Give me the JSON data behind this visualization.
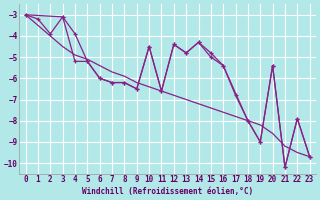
{
  "title": "",
  "xlabel": "Windchill (Refroidissement éolien,°C)",
  "ylabel": "",
  "background_color": "#b2e8e8",
  "grid_color": "#c0d8d8",
  "line_color": "#882288",
  "xlim": [
    -0.5,
    23.5
  ],
  "ylim": [
    -10.5,
    -2.5
  ],
  "yticks": [
    -10,
    -9,
    -8,
    -7,
    -6,
    -5,
    -4,
    -3
  ],
  "xticks": [
    0,
    1,
    2,
    3,
    4,
    5,
    6,
    7,
    8,
    9,
    10,
    11,
    12,
    13,
    14,
    15,
    16,
    17,
    18,
    19,
    20,
    21,
    22,
    23
  ],
  "series1": [
    [
      0,
      -3.0
    ],
    [
      1,
      -3.2
    ],
    [
      2,
      -3.9
    ],
    [
      3,
      -3.1
    ],
    [
      4,
      -3.9
    ],
    [
      5,
      -5.2
    ],
    [
      6,
      -6.0
    ],
    [
      7,
      -6.2
    ],
    [
      8,
      -6.2
    ],
    [
      9,
      -6.5
    ],
    [
      10,
      -4.5
    ],
    [
      11,
      -6.6
    ],
    [
      12,
      -4.4
    ],
    [
      13,
      -4.8
    ],
    [
      14,
      -4.3
    ],
    [
      15,
      -4.8
    ],
    [
      16,
      -5.4
    ],
    [
      17,
      -6.8
    ],
    [
      18,
      -8.0
    ],
    [
      19,
      -9.0
    ],
    [
      20,
      -5.4
    ],
    [
      21,
      -10.2
    ],
    [
      22,
      -7.9
    ],
    [
      23,
      -9.7
    ]
  ],
  "series2": [
    [
      0,
      -3.0
    ],
    [
      1,
      -3.5
    ],
    [
      2,
      -4.0
    ],
    [
      3,
      -4.5
    ],
    [
      4,
      -4.9
    ],
    [
      5,
      -5.1
    ],
    [
      6,
      -5.4
    ],
    [
      7,
      -5.7
    ],
    [
      8,
      -5.9
    ],
    [
      9,
      -6.2
    ],
    [
      10,
      -6.4
    ],
    [
      11,
      -6.6
    ],
    [
      12,
      -6.8
    ],
    [
      13,
      -7.0
    ],
    [
      14,
      -7.2
    ],
    [
      15,
      -7.4
    ],
    [
      16,
      -7.6
    ],
    [
      17,
      -7.8
    ],
    [
      18,
      -8.0
    ],
    [
      19,
      -8.2
    ],
    [
      20,
      -8.6
    ],
    [
      21,
      -9.2
    ],
    [
      22,
      -9.5
    ],
    [
      23,
      -9.7
    ]
  ],
  "series3": [
    [
      0,
      -3.0
    ],
    [
      3,
      -3.1
    ],
    [
      4,
      -5.2
    ],
    [
      5,
      -5.2
    ],
    [
      6,
      -6.0
    ],
    [
      7,
      -6.2
    ],
    [
      8,
      -6.2
    ],
    [
      9,
      -6.5
    ],
    [
      10,
      -4.5
    ],
    [
      11,
      -6.6
    ],
    [
      12,
      -4.4
    ],
    [
      13,
      -4.8
    ],
    [
      14,
      -4.3
    ],
    [
      15,
      -5.0
    ],
    [
      16,
      -5.4
    ],
    [
      18,
      -8.0
    ],
    [
      19,
      -9.0
    ],
    [
      20,
      -5.4
    ],
    [
      21,
      -10.2
    ],
    [
      22,
      -7.9
    ],
    [
      23,
      -9.7
    ]
  ]
}
